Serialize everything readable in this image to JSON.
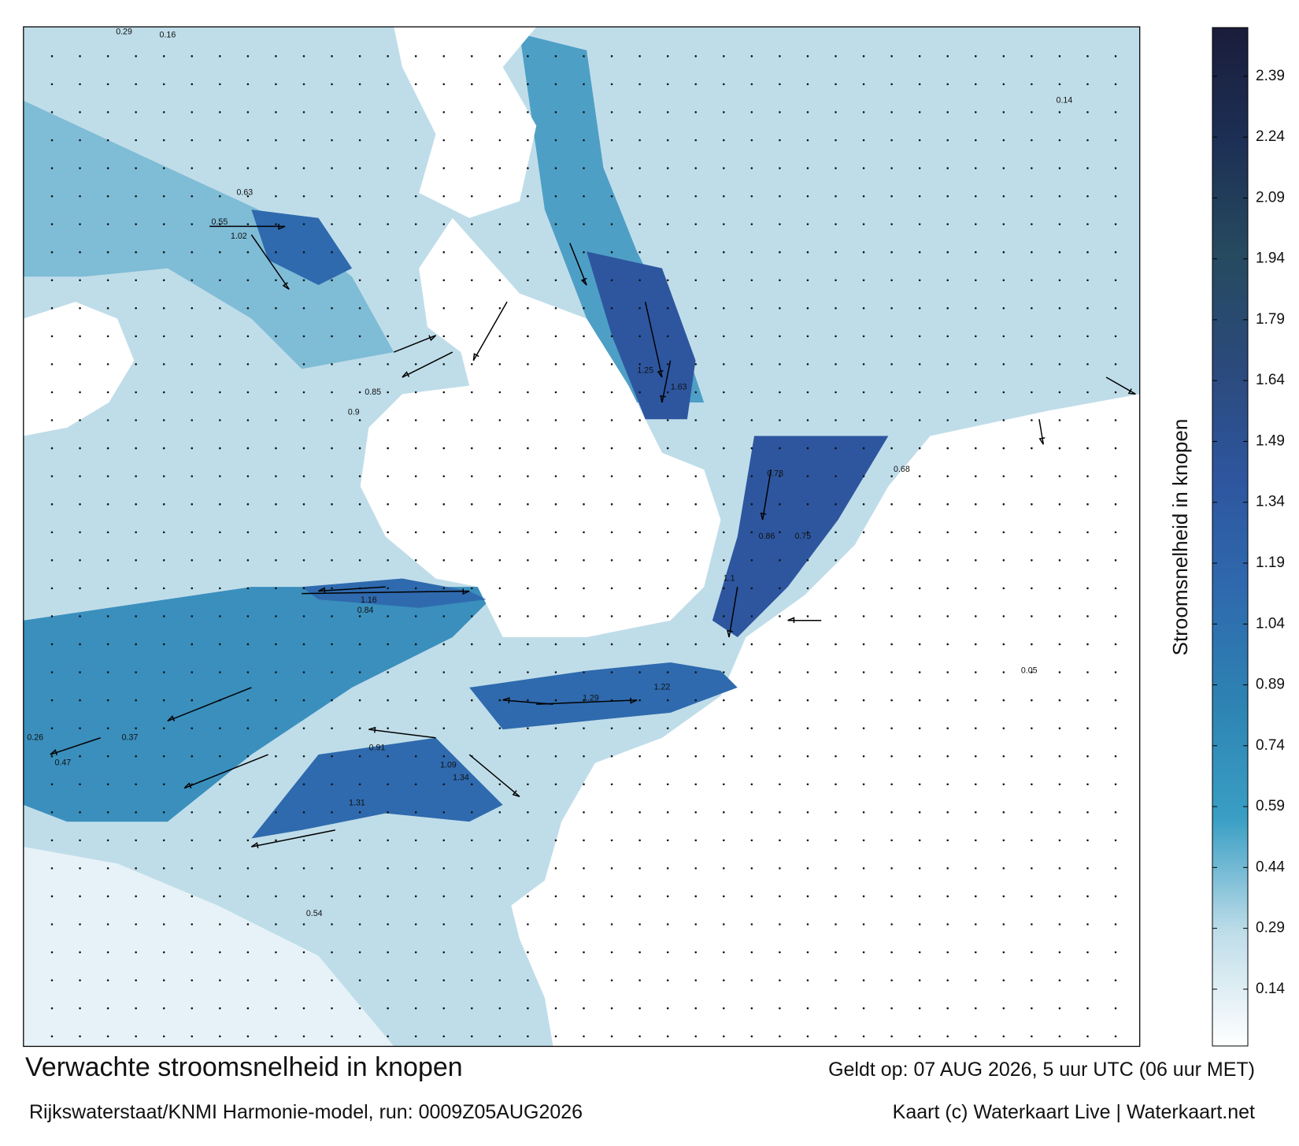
{
  "title": "Verwachte stroomsnelheid in knopen",
  "subtitle": "Rijkswaterstaat/KNMI Harmonie-model, run: 0009Z05AUG2026",
  "valid_time": "Geldt op: 07 AUG 2026, 5 uur UTC (06 uur MET)",
  "credit": "Kaart (c) Waterkaart Live | Waterkaart.net",
  "colorbar": {
    "label": "Stroomsnelheid in knopen",
    "range": [
      0,
      2.51
    ],
    "ticks": [
      0.14,
      0.29,
      0.44,
      0.59,
      0.74,
      0.89,
      1.04,
      1.19,
      1.34,
      1.49,
      1.64,
      1.79,
      1.94,
      2.09,
      2.24,
      2.39
    ],
    "colors": [
      "#ffffff",
      "#bfdde9",
      "#3a9fc4",
      "#2d84b3",
      "#2f6aae",
      "#2e569f",
      "#2b4a7c",
      "#264a5f",
      "#1d2f55",
      "#1a1d3a"
    ]
  },
  "map_labels": [
    "0.29",
    "0.16",
    "0.55",
    "1.02",
    "0.63",
    "0.85",
    "0.9",
    "1.16",
    "0.84",
    "1.25",
    "1.63",
    "0.78",
    "0.86",
    "1.1",
    "1.29",
    "1.22",
    "1.34",
    "1.09",
    "1.31",
    "0.91",
    "0.54",
    "0.37",
    "0.26",
    "0.14",
    "0.05",
    "0.47",
    "0.75",
    "0.68"
  ]
}
